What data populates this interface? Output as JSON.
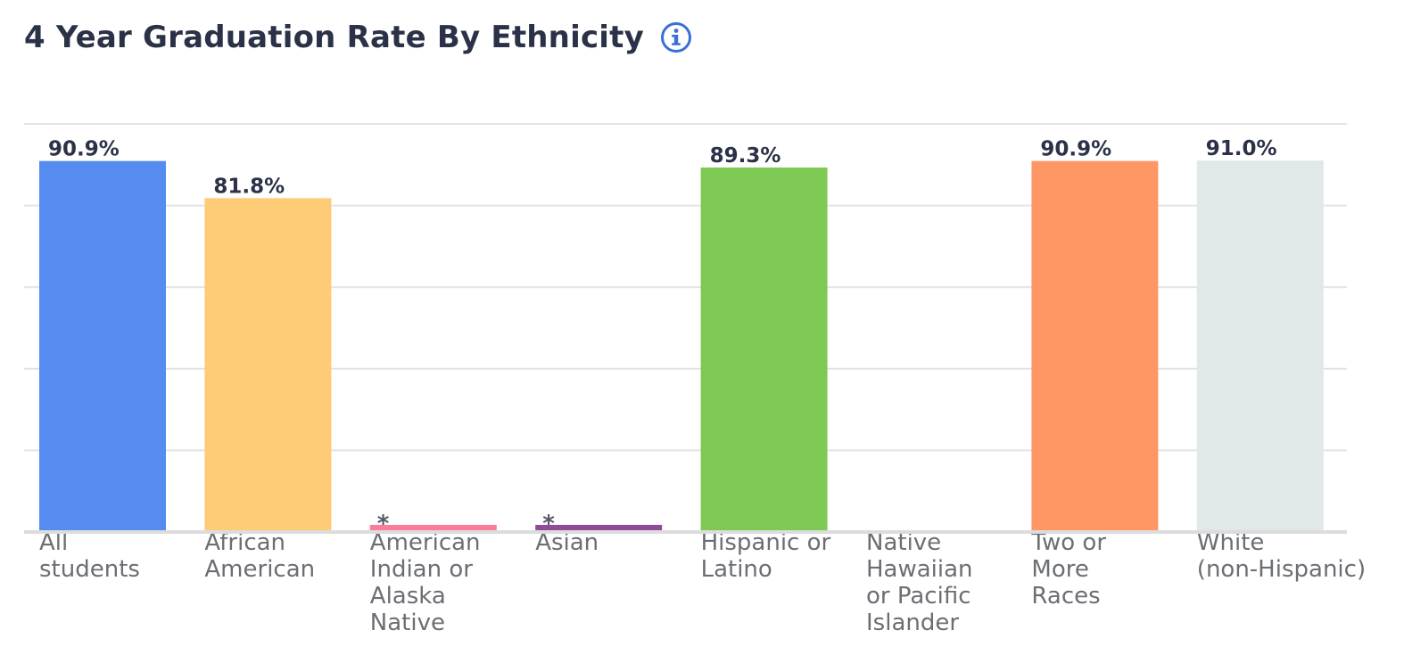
{
  "header": {
    "title": "4 Year Graduation Rate By Ethnicity",
    "info_icon": "info-circle-icon"
  },
  "colors": {
    "title": "#2b3247",
    "gridline": "#e3e3e3",
    "baseline": "#dcdcdc",
    "info_icon": "#3a6fd8"
  },
  "chart_data": {
    "type": "bar",
    "title": "4 Year Graduation Rate By Ethnicity",
    "xlabel": "",
    "ylabel": "",
    "ylim": [
      0,
      100
    ],
    "grid": true,
    "legend": "none",
    "categories": [
      {
        "lines": [
          "All",
          "students"
        ]
      },
      {
        "lines": [
          "African",
          "American"
        ]
      },
      {
        "lines": [
          "American",
          "Indian or",
          "Alaska",
          "Native"
        ]
      },
      {
        "lines": [
          "Asian"
        ]
      },
      {
        "lines": [
          "Hispanic or",
          "Latino"
        ]
      },
      {
        "lines": [
          "Native",
          "Hawaiian",
          "or Pacific",
          "Islander"
        ]
      },
      {
        "lines": [
          "Two or",
          "More",
          "Races"
        ]
      },
      {
        "lines": [
          "White",
          "(non-Hispanic)"
        ]
      }
    ],
    "values": [
      90.9,
      81.8,
      null,
      null,
      89.3,
      null,
      90.9,
      91.0
    ],
    "labels": [
      "90.9%",
      "81.8%",
      "*",
      "*",
      "89.3%",
      "",
      "90.9%",
      "91.0%"
    ],
    "suppressed": [
      false,
      false,
      true,
      true,
      false,
      false,
      false,
      false
    ],
    "colors": [
      "#568cf0",
      "#fecb77",
      "#fc7b9b",
      "#914a96",
      "#7dc954",
      "#cccccc",
      "#ff9666",
      "#e0e8ea"
    ]
  }
}
